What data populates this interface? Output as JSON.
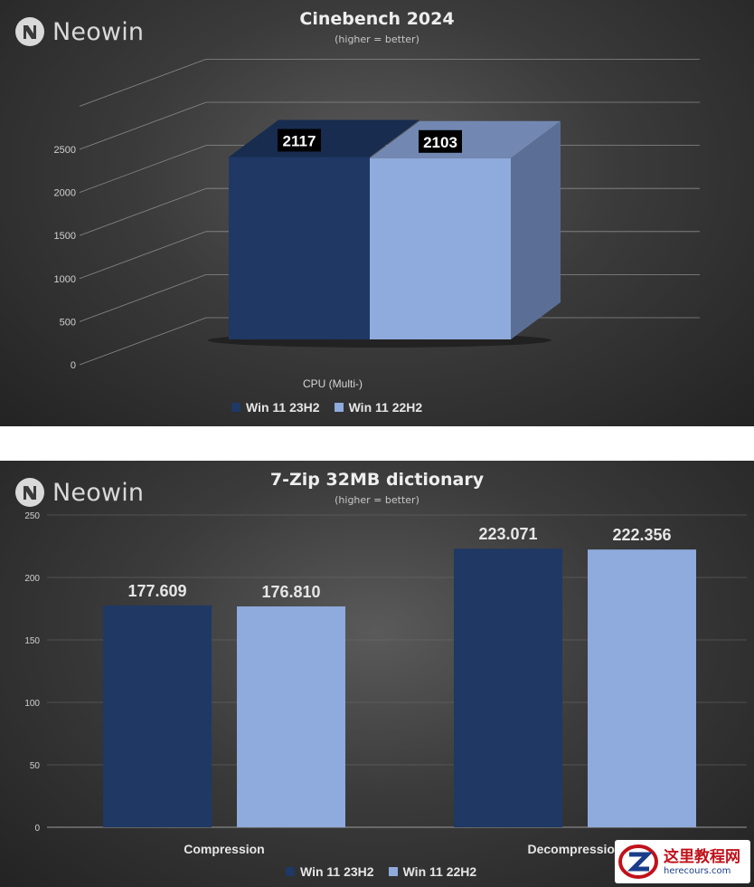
{
  "brand": "Neowin",
  "legend": [
    {
      "name": "Win 11 23H2",
      "color": "#1f3864"
    },
    {
      "name": "Win 11 22H2",
      "color": "#8faadc"
    }
  ],
  "chart_data": [
    {
      "type": "bar",
      "style": "3d",
      "title": "Cinebench 2024",
      "subtitle": "(higher = better)",
      "categories": [
        "CPU (Multi-)"
      ],
      "series": [
        {
          "name": "Win 11 23H2",
          "values": [
            2117
          ],
          "labels": [
            "2117"
          ]
        },
        {
          "name": "Win 11 22H2",
          "values": [
            2103
          ],
          "labels": [
            "2103"
          ]
        }
      ],
      "yticks": [
        "0",
        "500",
        "1000",
        "1500",
        "2000",
        "2500"
      ],
      "ylim": [
        0,
        3000
      ],
      "grid": true,
      "legend_position": "bottom"
    },
    {
      "type": "bar",
      "title": "7-Zip 32MB dictionary",
      "subtitle": "(higher = better)",
      "categories": [
        "Compression",
        "Decompression"
      ],
      "series": [
        {
          "name": "Win 11 23H2",
          "values": [
            177.609,
            223.071
          ],
          "labels": [
            "177.609",
            "223.071"
          ]
        },
        {
          "name": "Win 11 22H2",
          "values": [
            176.81,
            222.356
          ],
          "labels": [
            "176.810",
            "222.356"
          ]
        }
      ],
      "yticks": [
        "0",
        "50",
        "100",
        "150",
        "200",
        "250"
      ],
      "ylim": [
        0,
        250
      ],
      "grid": true,
      "legend_position": "bottom"
    }
  ],
  "watermark": {
    "main": "这里教程网",
    "sub": "herecours.com"
  }
}
